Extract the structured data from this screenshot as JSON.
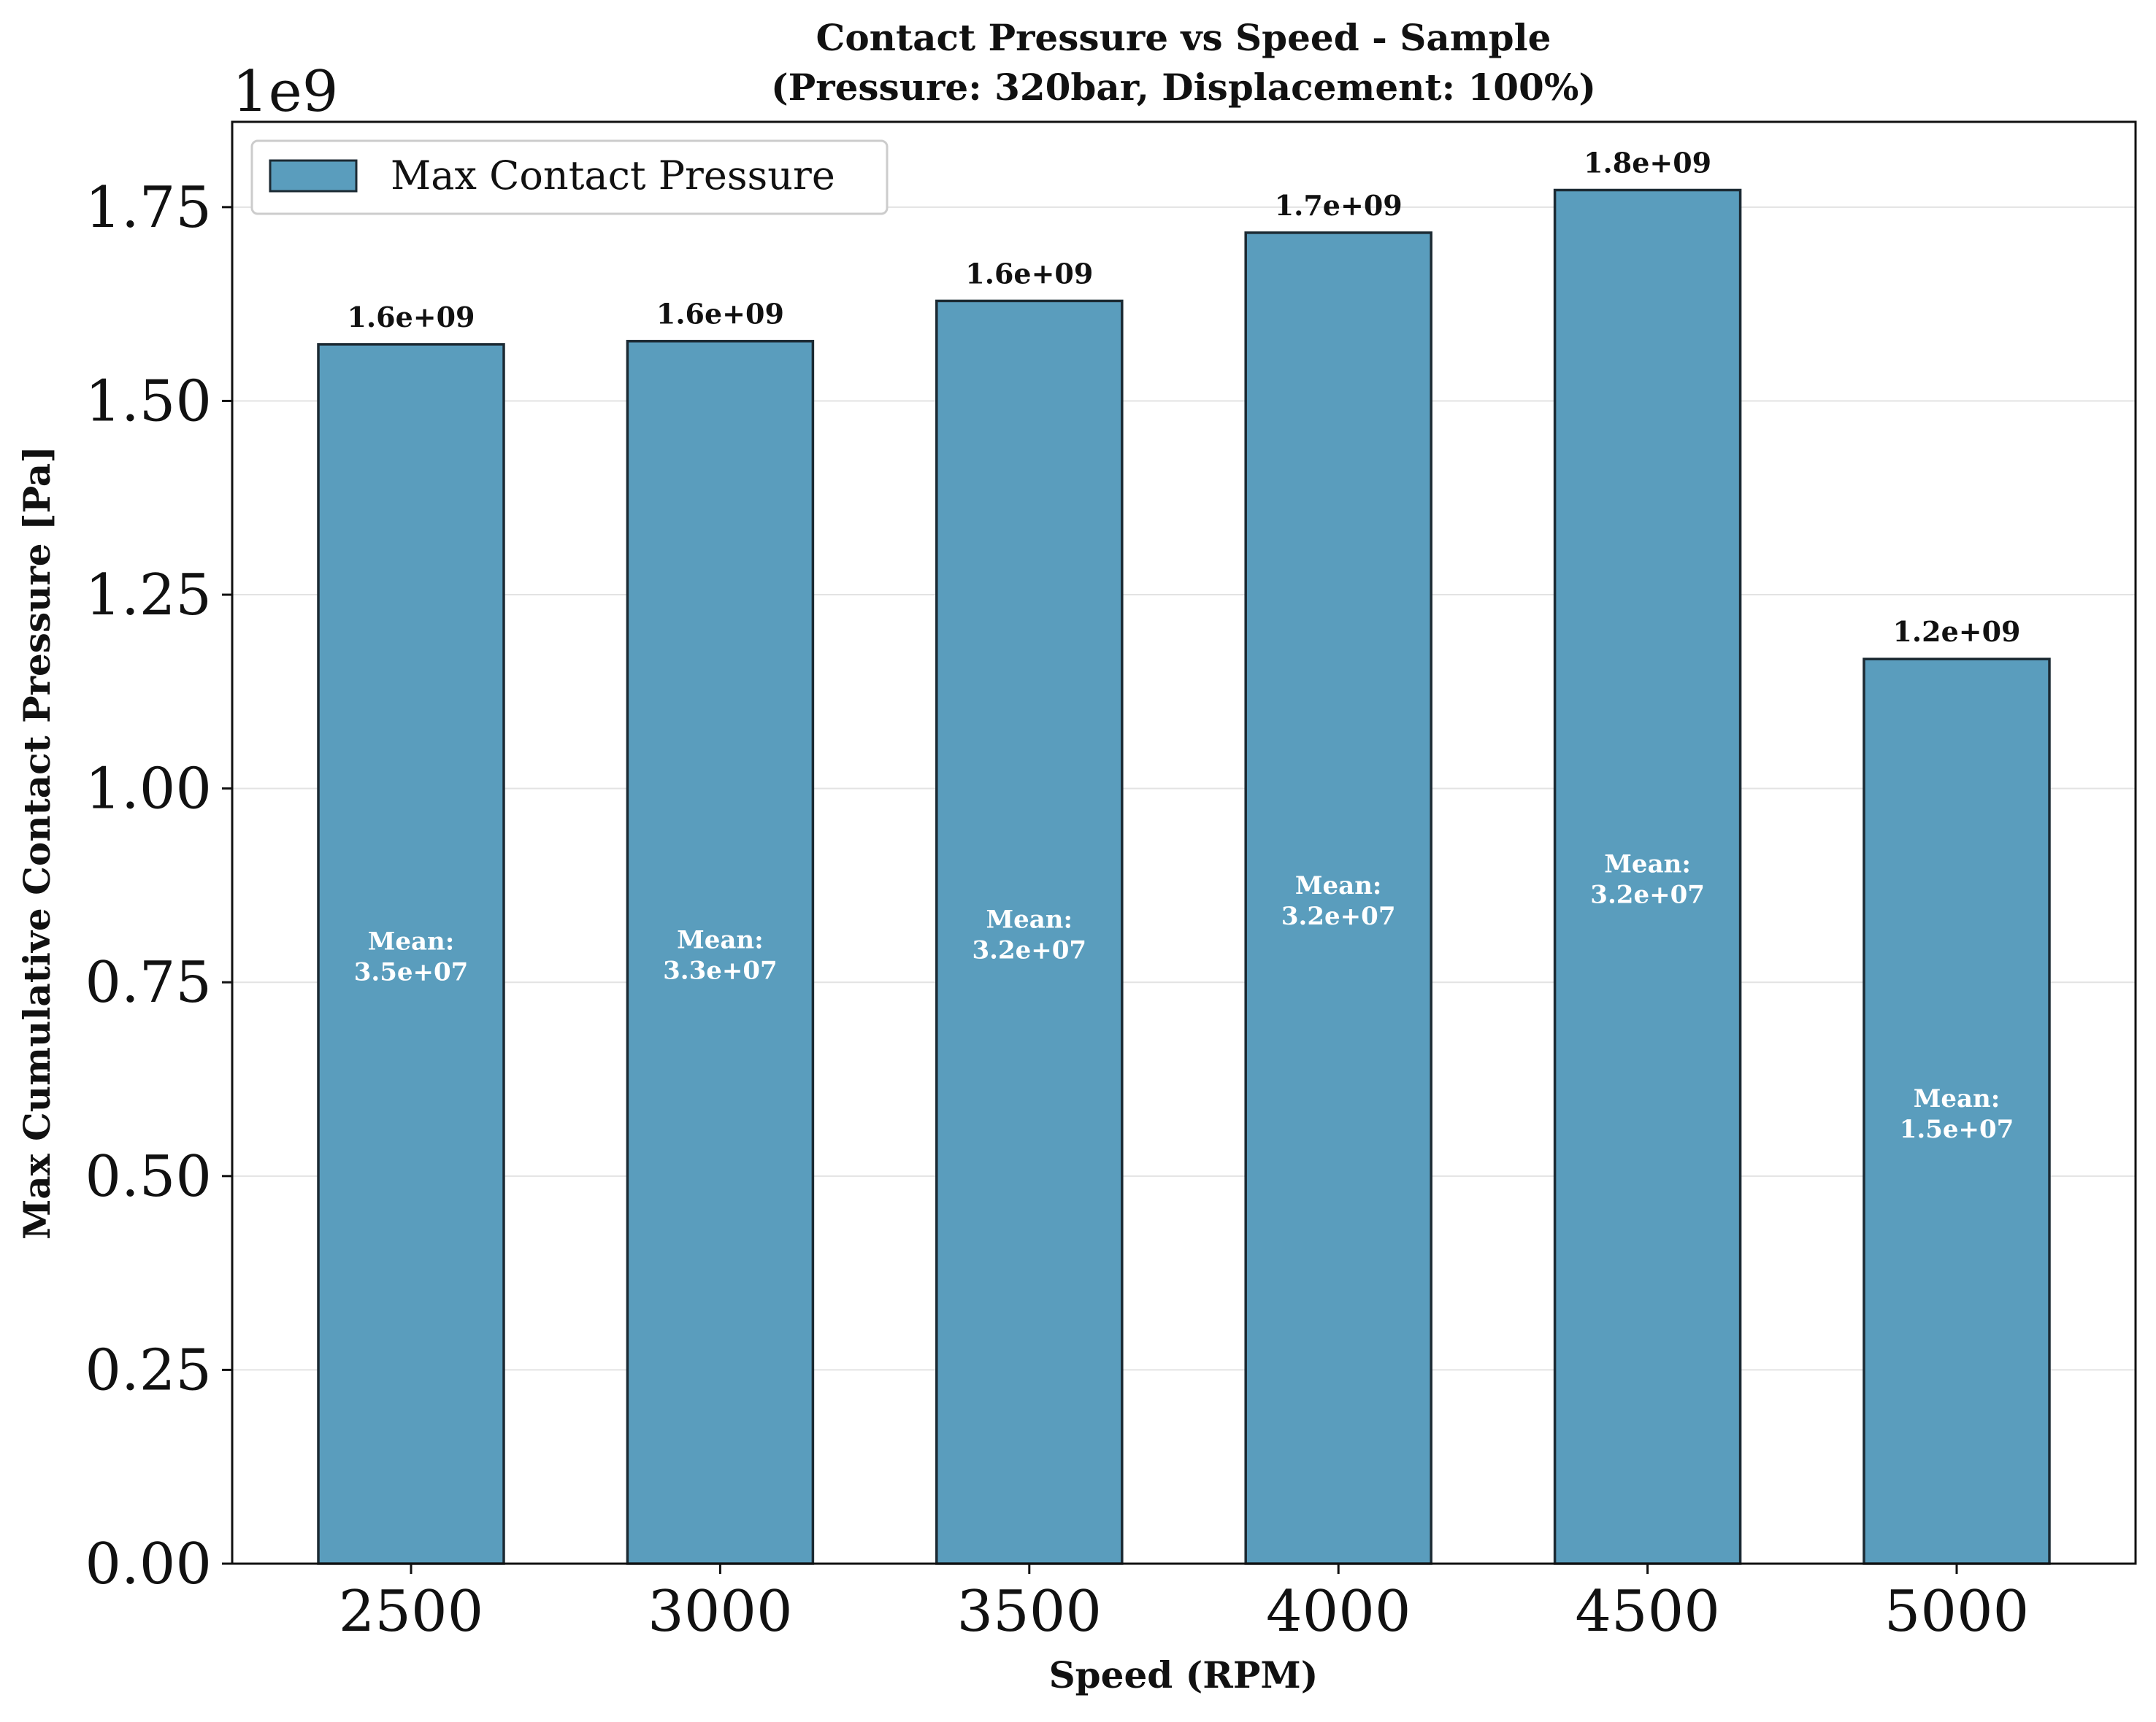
{
  "chart_data": {
    "type": "bar",
    "title": "Contact Pressure vs Speed - Sample",
    "subtitle": "(Pressure: 320bar, Displacement: 100%)",
    "xlabel": "Speed (RPM)",
    "ylabel": "Max Cumulative Contact Pressure [Pa]",
    "y_offset_text": "1e9",
    "categories": [
      "2500",
      "3000",
      "3500",
      "4000",
      "4500",
      "5000"
    ],
    "series": [
      {
        "name": "Max Contact Pressure",
        "values": [
          1573000000,
          1577000000,
          1629000000,
          1717000000,
          1772000000,
          1167000000
        ],
        "value_labels": [
          "1.6e+09",
          "1.6e+09",
          "1.6e+09",
          "1.7e+09",
          "1.8e+09",
          "1.2e+09"
        ],
        "mean_prefix": "Mean:",
        "mean_labels": [
          "3.5e+07",
          "3.3e+07",
          "3.2e+07",
          "3.2e+07",
          "3.2e+07",
          "1.5e+07"
        ],
        "color": "#5a9dbd",
        "edge_color": "#1c2a33"
      }
    ],
    "ylim": [
      0,
      1860000000
    ],
    "yticks": [
      0,
      250000000,
      500000000,
      750000000,
      1000000000,
      1250000000,
      1500000000,
      1750000000
    ],
    "ytick_labels": [
      "0.00",
      "0.25",
      "0.50",
      "0.75",
      "1.00",
      "1.25",
      "1.50",
      "1.75"
    ],
    "grid": "horizontal",
    "legend": "upper-left"
  }
}
